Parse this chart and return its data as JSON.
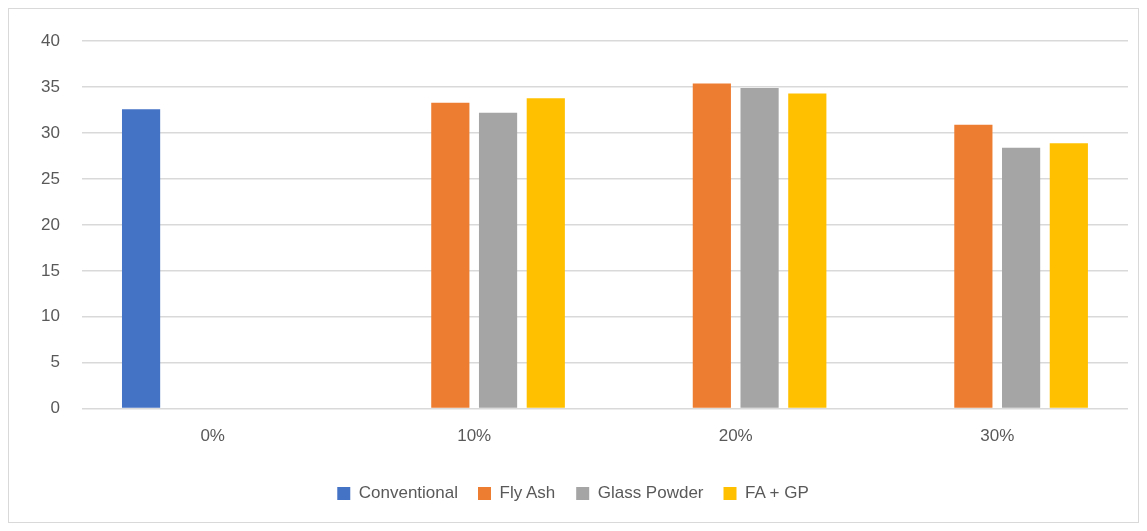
{
  "chart_data": {
    "type": "bar",
    "categories": [
      "0%",
      "10%",
      "20%",
      "30%"
    ],
    "series": [
      {
        "name": "Conventional",
        "color": "#4472c4",
        "values": [
          32.6,
          null,
          null,
          null
        ]
      },
      {
        "name": "Fly Ash",
        "color": "#ed7d31",
        "values": [
          null,
          33.3,
          35.4,
          30.9
        ]
      },
      {
        "name": "Glass Powder",
        "color": "#a5a5a5",
        "values": [
          null,
          32.2,
          34.9,
          28.4
        ]
      },
      {
        "name": "FA + GP",
        "color": "#ffc000",
        "values": [
          null,
          33.8,
          34.3,
          28.9
        ]
      }
    ],
    "ylim": [
      0,
      40
    ],
    "yticks": [
      0,
      5,
      10,
      15,
      20,
      25,
      30,
      35,
      40
    ],
    "grid": "y",
    "legend": "bottom"
  }
}
